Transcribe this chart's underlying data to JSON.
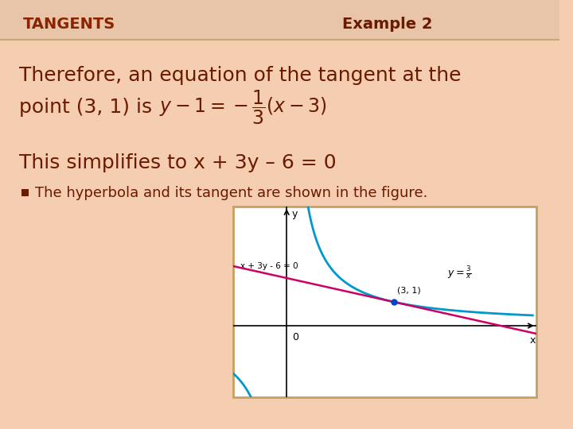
{
  "bg_color": "#f5cdb0",
  "bg_color2": "#f9e0d0",
  "header_text_left": "TANGENTS",
  "header_text_right": "Example 2",
  "header_color": "#8b2500",
  "header_bg": "#e8c4a8",
  "main_text_color": "#6b1a00",
  "text_line1": "Therefore, an equation of the tangent at the",
  "text_line2": "point (3, 1) is",
  "formula": "y - 1 = -\\frac{1}{3}(x - 3)",
  "simplify_text": "This simplifies to x + 3y – 6 = 0",
  "bullet_text": "The hyperbola and its tangent are shown in the figure.",
  "bullet_color": "#8b2500",
  "figure_border_color": "#c8a060",
  "tangent_color": "#cc0066",
  "hyperbola_color": "#0099cc",
  "point_color": "#0044cc",
  "graph_label_eq": "x + 3y - 6 = 0",
  "graph_label_y": "y = \\frac{3}{x}",
  "graph_label_point": "(3, 1)",
  "graph_label_0": "0",
  "graph_label_x": "x",
  "graph_label_y_axis": "y"
}
